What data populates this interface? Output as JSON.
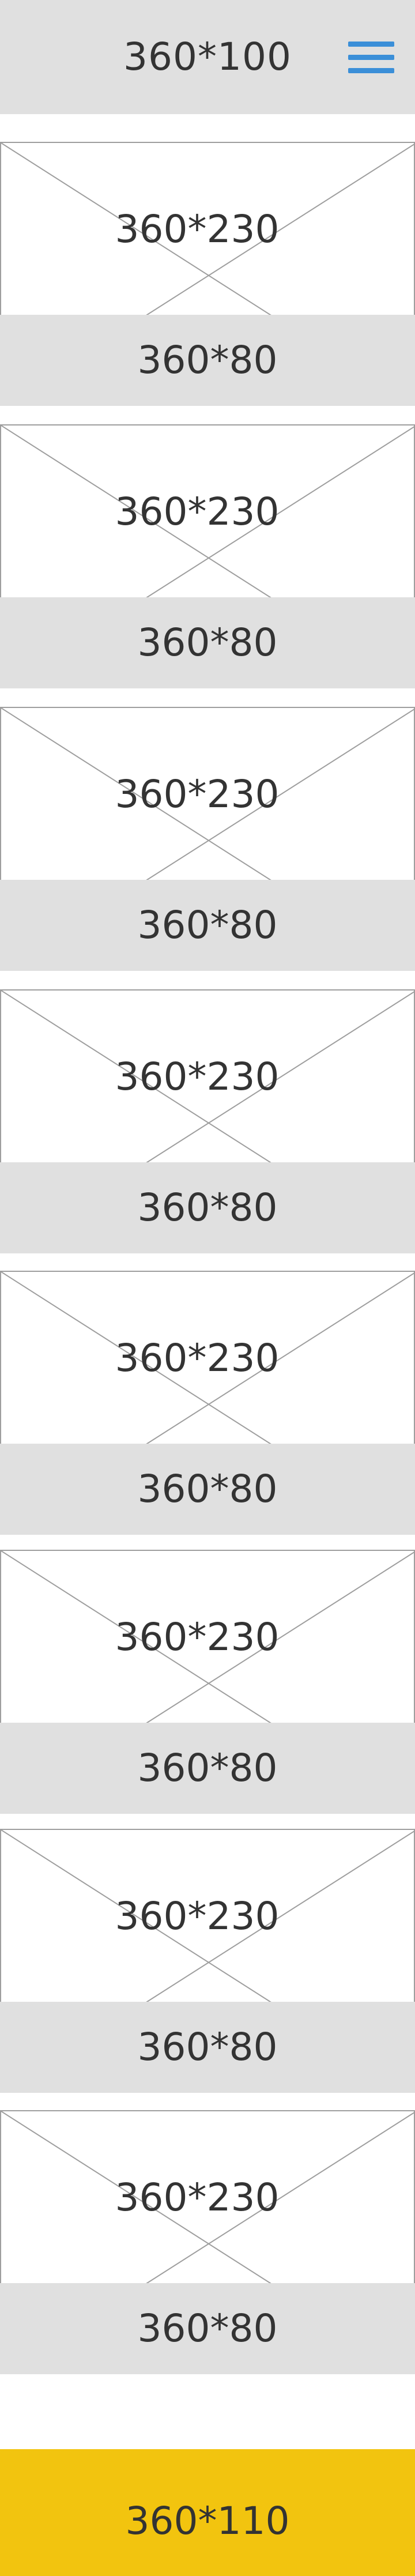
{
  "header": {
    "title": "360*100",
    "menu_icon": "hamburger-menu-icon",
    "menu_color": "#3b8fd8"
  },
  "cards": [
    {
      "image_label": "360*230",
      "caption": "360*80"
    },
    {
      "image_label": "360*230",
      "caption": "360*80"
    },
    {
      "image_label": "360*230",
      "caption": "360*80"
    },
    {
      "image_label": "360*230",
      "caption": "360*80"
    },
    {
      "image_label": "360*230",
      "caption": "360*80"
    },
    {
      "image_label": "360*230",
      "caption": "360*80"
    },
    {
      "image_label": "360*230",
      "caption": "360*80"
    },
    {
      "image_label": "360*230",
      "caption": "360*80"
    }
  ],
  "footer": {
    "label": "360*110",
    "color": "#f2c40f"
  }
}
